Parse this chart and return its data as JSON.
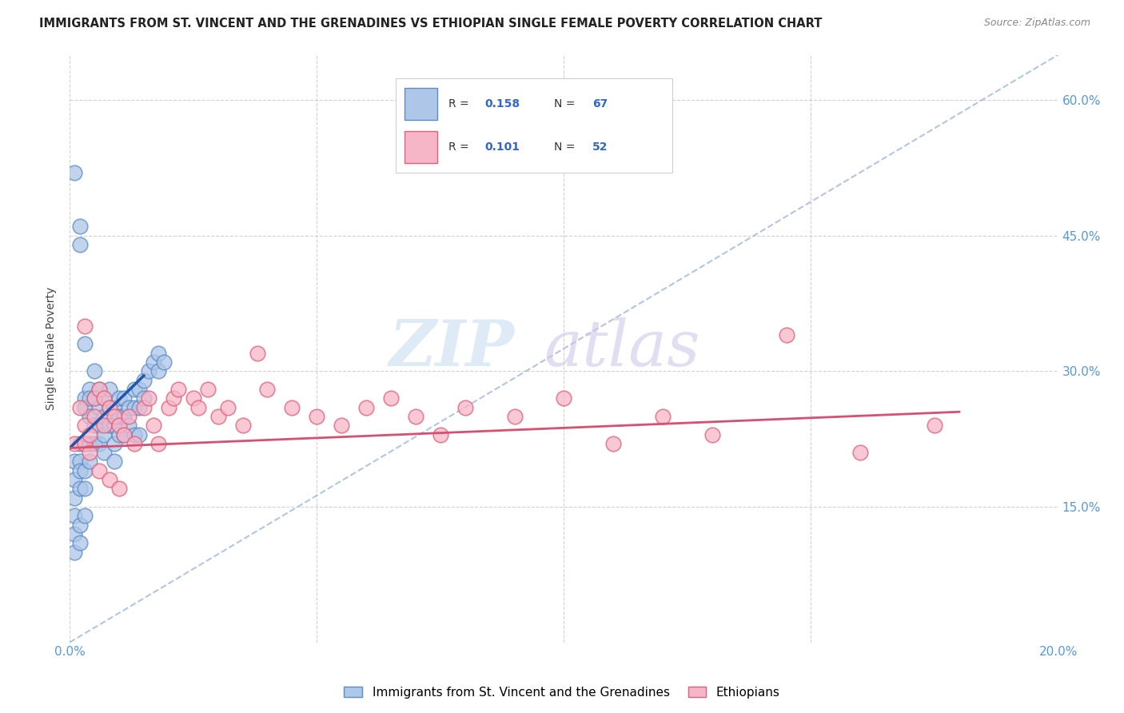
{
  "title": "IMMIGRANTS FROM ST. VINCENT AND THE GRENADINES VS ETHIOPIAN SINGLE FEMALE POVERTY CORRELATION CHART",
  "source": "Source: ZipAtlas.com",
  "ylabel": "Single Female Poverty",
  "xlim": [
    0.0,
    0.2
  ],
  "ylim": [
    0.0,
    0.65
  ],
  "ytick_vals": [
    0.15,
    0.3,
    0.45,
    0.6
  ],
  "ytick_labels": [
    "15.0%",
    "30.0%",
    "45.0%",
    "60.0%"
  ],
  "xtick_vals": [
    0.0,
    0.05,
    0.1,
    0.15,
    0.2
  ],
  "xtick_labels": [
    "0.0%",
    "",
    "",
    "",
    "20.0%"
  ],
  "legend_label1": "Immigrants from St. Vincent and the Grenadines",
  "legend_label2": "Ethiopians",
  "color_blue_fill": "#aec6e8",
  "color_blue_edge": "#5b8ec4",
  "color_pink_fill": "#f7b6c8",
  "color_pink_edge": "#e0607a",
  "line_blue_color": "#2255aa",
  "line_pink_color": "#d94f72",
  "line_dash_color": "#a0b8d8",
  "grid_color": "#cccccc",
  "title_color": "#222222",
  "axis_tick_color": "#5599dd",
  "legend_text_color": "#222222",
  "legend_val_color": "#3366cc",
  "watermark_zip_color": "#c8ddf0",
  "watermark_atlas_color": "#d0c8e8",
  "blue_x": [
    0.001,
    0.001,
    0.001,
    0.001,
    0.001,
    0.002,
    0.002,
    0.002,
    0.002,
    0.002,
    0.002,
    0.003,
    0.003,
    0.003,
    0.003,
    0.003,
    0.003,
    0.004,
    0.004,
    0.004,
    0.004,
    0.004,
    0.005,
    0.005,
    0.005,
    0.005,
    0.006,
    0.006,
    0.006,
    0.006,
    0.007,
    0.007,
    0.007,
    0.007,
    0.008,
    0.008,
    0.008,
    0.009,
    0.009,
    0.009,
    0.009,
    0.01,
    0.01,
    0.01,
    0.011,
    0.011,
    0.011,
    0.012,
    0.012,
    0.013,
    0.013,
    0.013,
    0.014,
    0.014,
    0.014,
    0.015,
    0.015,
    0.016,
    0.017,
    0.018,
    0.018,
    0.019,
    0.001,
    0.001,
    0.002,
    0.002,
    0.003
  ],
  "blue_y": [
    0.52,
    0.2,
    0.18,
    0.16,
    0.14,
    0.46,
    0.44,
    0.22,
    0.2,
    0.19,
    0.17,
    0.33,
    0.27,
    0.26,
    0.22,
    0.19,
    0.17,
    0.28,
    0.27,
    0.25,
    0.22,
    0.2,
    0.3,
    0.27,
    0.24,
    0.22,
    0.28,
    0.26,
    0.24,
    0.22,
    0.27,
    0.25,
    0.23,
    0.21,
    0.28,
    0.26,
    0.24,
    0.26,
    0.24,
    0.22,
    0.2,
    0.27,
    0.25,
    0.23,
    0.27,
    0.25,
    0.23,
    0.26,
    0.24,
    0.28,
    0.26,
    0.23,
    0.28,
    0.26,
    0.23,
    0.29,
    0.27,
    0.3,
    0.31,
    0.32,
    0.3,
    0.31,
    0.12,
    0.1,
    0.13,
    0.11,
    0.14
  ],
  "pink_x": [
    0.001,
    0.002,
    0.003,
    0.003,
    0.004,
    0.005,
    0.005,
    0.006,
    0.007,
    0.007,
    0.008,
    0.009,
    0.01,
    0.011,
    0.012,
    0.013,
    0.015,
    0.016,
    0.017,
    0.018,
    0.02,
    0.021,
    0.022,
    0.025,
    0.026,
    0.028,
    0.03,
    0.032,
    0.035,
    0.038,
    0.04,
    0.045,
    0.05,
    0.055,
    0.06,
    0.065,
    0.07,
    0.075,
    0.08,
    0.09,
    0.1,
    0.11,
    0.12,
    0.13,
    0.145,
    0.16,
    0.175,
    0.003,
    0.004,
    0.006,
    0.008,
    0.01
  ],
  "pink_y": [
    0.22,
    0.26,
    0.24,
    0.22,
    0.23,
    0.27,
    0.25,
    0.28,
    0.27,
    0.24,
    0.26,
    0.25,
    0.24,
    0.23,
    0.25,
    0.22,
    0.26,
    0.27,
    0.24,
    0.22,
    0.26,
    0.27,
    0.28,
    0.27,
    0.26,
    0.28,
    0.25,
    0.26,
    0.24,
    0.32,
    0.28,
    0.26,
    0.25,
    0.24,
    0.26,
    0.27,
    0.25,
    0.23,
    0.26,
    0.25,
    0.27,
    0.22,
    0.25,
    0.23,
    0.34,
    0.21,
    0.24,
    0.35,
    0.21,
    0.19,
    0.18,
    0.17
  ],
  "blue_line_x": [
    0.0,
    0.015
  ],
  "blue_line_y": [
    0.215,
    0.295
  ],
  "pink_line_x": [
    0.0,
    0.18
  ],
  "pink_line_y": [
    0.215,
    0.255
  ],
  "dash_line_x": [
    0.0,
    0.2
  ],
  "dash_line_y": [
    0.0,
    0.65
  ]
}
